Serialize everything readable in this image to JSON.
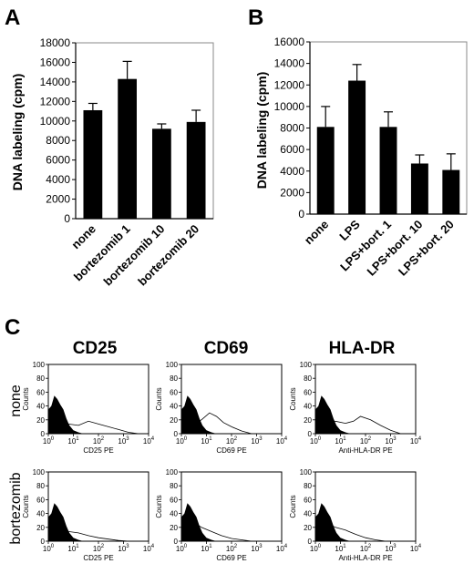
{
  "panel_labels": {
    "a": "A",
    "b": "B",
    "c": "C"
  },
  "chart_data": [
    {
      "type": "bar",
      "panel": "A",
      "categories": [
        "none",
        "bortezomib 1",
        "bortezomib 10",
        "bortezomib 20"
      ],
      "values": [
        11100,
        14300,
        9200,
        9900
      ],
      "errors": [
        700,
        1800,
        500,
        1200
      ],
      "ylabel": "DNA labeling (cpm)",
      "ylim": [
        0,
        18000
      ],
      "yticks": [
        0,
        2000,
        4000,
        6000,
        8000,
        10000,
        12000,
        14000,
        16000,
        18000
      ],
      "grid": false,
      "bar_color": "#000000"
    },
    {
      "type": "bar",
      "panel": "B",
      "categories": [
        "none",
        "LPS",
        "LPS+bort. 1",
        "LPS+bort. 10",
        "LPS+bort. 20"
      ],
      "values": [
        8100,
        12400,
        8100,
        4700,
        4100
      ],
      "errors": [
        1900,
        1500,
        1400,
        800,
        1500
      ],
      "ylabel": "DNA labeling (cpm)",
      "ylim": [
        0,
        16000
      ],
      "yticks": [
        0,
        2000,
        4000,
        6000,
        8000,
        10000,
        12000,
        14000,
        16000
      ],
      "grid": false,
      "bar_color": "#000000"
    }
  ],
  "flow": {
    "columns": [
      "CD25",
      "CD69",
      "HLA-DR"
    ],
    "rows": [
      "none",
      "bortezomib"
    ],
    "ylabel": "Counts",
    "yticks": [
      "0",
      "20",
      "40",
      "60",
      "80",
      "100"
    ],
    "xticks": [
      {
        "base": "10",
        "exp": "0"
      },
      {
        "base": "10",
        "exp": "1"
      },
      {
        "base": "10",
        "exp": "2"
      },
      {
        "base": "10",
        "exp": "3"
      },
      {
        "base": "10",
        "exp": "4"
      }
    ],
    "xlabels": [
      "CD25 PE",
      "CD69 PE",
      "Anti-HLA-DR PE"
    ]
  }
}
